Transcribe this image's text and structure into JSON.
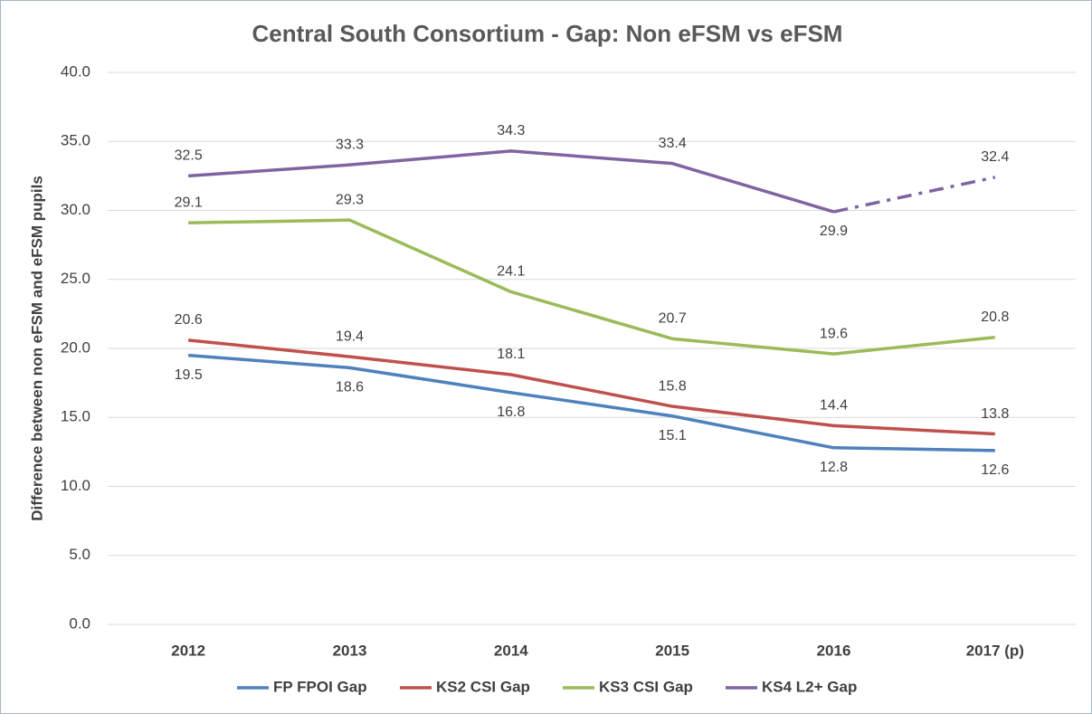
{
  "chart_data": {
    "type": "line",
    "title": "Central South Consortium - Gap: Non eFSM vs eFSM",
    "y_label": "Difference between non eFSM and eFSM pupils",
    "categories": [
      "2012",
      "2013",
      "2014",
      "2015",
      "2016",
      "2017 (p)"
    ],
    "series": [
      {
        "name": "FP FPOI Gap",
        "color": "#4f81bd",
        "values": [
          19.5,
          18.6,
          16.8,
          15.1,
          12.8,
          12.6
        ]
      },
      {
        "name": "KS2 CSI Gap",
        "color": "#c0504d",
        "values": [
          20.6,
          19.4,
          18.1,
          15.8,
          14.4,
          13.8
        ]
      },
      {
        "name": "KS3 CSI Gap",
        "color": "#9bbb59",
        "values": [
          29.1,
          29.3,
          24.1,
          20.7,
          19.6,
          20.8
        ]
      },
      {
        "name": "KS4 L2+ Gap",
        "color": "#8064a2",
        "values": [
          32.5,
          33.3,
          34.3,
          33.4,
          29.9,
          32.4
        ],
        "dash_from": 4
      }
    ],
    "ylim": [
      0,
      40
    ],
    "yticks": [
      {
        "value": 0,
        "label": "0.0"
      },
      {
        "value": 5,
        "label": "5.0"
      },
      {
        "value": 10,
        "label": "10.0"
      },
      {
        "value": 15,
        "label": "15.0"
      },
      {
        "value": 20,
        "label": "20.0"
      },
      {
        "value": 25,
        "label": "25.0"
      },
      {
        "value": 30,
        "label": "30.0"
      },
      {
        "value": 35,
        "label": "35.0"
      },
      {
        "value": 40,
        "label": "40.0"
      }
    ],
    "grid": true,
    "legend": "bottom"
  }
}
